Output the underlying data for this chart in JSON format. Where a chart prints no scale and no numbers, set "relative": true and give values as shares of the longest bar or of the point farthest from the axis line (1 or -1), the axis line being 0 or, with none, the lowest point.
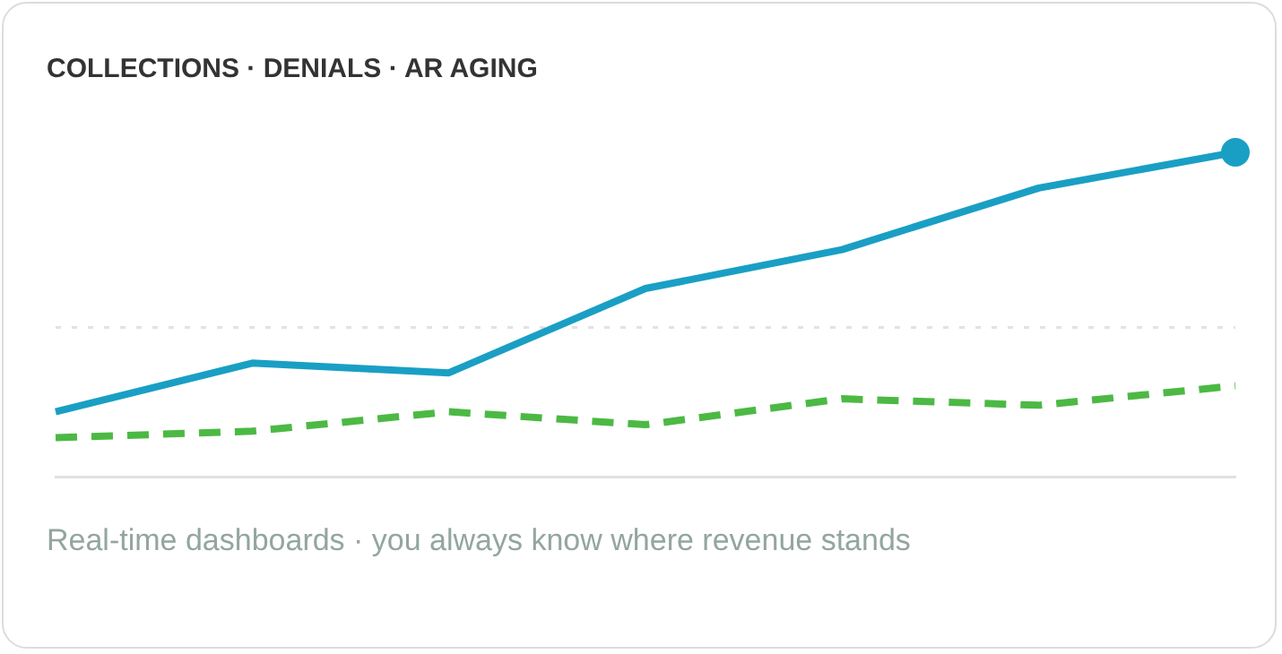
{
  "chart_data": {
    "type": "line",
    "title": "COLLECTIONS · DENIALS · AR AGING",
    "relative": true,
    "categories": [
      null,
      null,
      null,
      null,
      null,
      null,
      null
    ],
    "series": [
      {
        "color": "#1a9fc4",
        "values": [
          0.2,
          0.35,
          0.32,
          0.58,
          0.7,
          0.89,
          1.0
        ],
        "line_style": "solid"
      },
      {
        "color": "#4cb944",
        "values": [
          0.12,
          0.14,
          0.2,
          0.16,
          0.24,
          0.22,
          0.28
        ],
        "line_style": "dashed"
      }
    ],
    "ref_lines": [
      {
        "axis": "y",
        "value": 0.46,
        "color": "#e2e2e2",
        "line_style": "dotted"
      }
    ],
    "annotations": [
      "Real-time dashboards · you always know where revenue stands"
    ],
    "grid": false,
    "legend": false
  }
}
